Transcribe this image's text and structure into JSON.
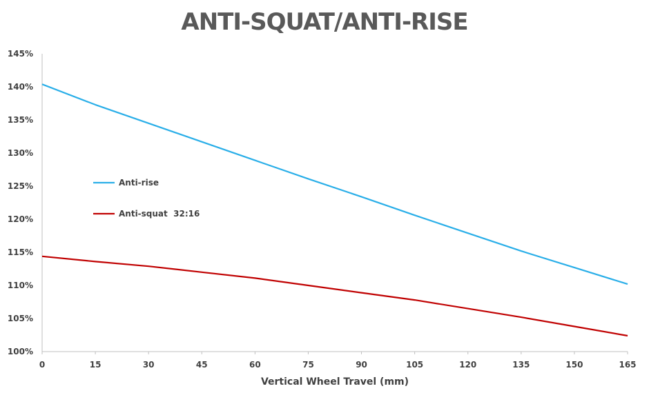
{
  "chart_data": {
    "type": "line",
    "title": "ANTI-SQUAT/ANTI-RISE",
    "xlabel": "Vertical Wheel Travel (mm)",
    "ylabel": "",
    "xlim": [
      0,
      165
    ],
    "ylim": [
      100,
      145
    ],
    "x_ticks": [
      "0",
      "15",
      "30",
      "45",
      "60",
      "75",
      "90",
      "105",
      "120",
      "135",
      "150",
      "165"
    ],
    "y_ticks": [
      "100%",
      "105%",
      "110%",
      "115%",
      "120%",
      "125%",
      "130%",
      "135%",
      "140%",
      "145%"
    ],
    "grid": false,
    "legend_placement": "left-middle",
    "series": [
      {
        "name": "Anti-rise",
        "color": "#29aee8",
        "x": [
          0,
          15,
          30,
          45,
          60,
          75,
          90,
          105,
          120,
          135,
          150,
          165
        ],
        "y": [
          140.4,
          137.3,
          134.5,
          131.7,
          128.9,
          126.1,
          123.4,
          120.6,
          117.9,
          115.2,
          112.7,
          110.2
        ]
      },
      {
        "name": "Anti-squat  32:16",
        "color": "#c00000",
        "x": [
          0,
          15,
          30,
          45,
          60,
          75,
          90,
          105,
          120,
          135,
          150,
          165
        ],
        "y": [
          114.4,
          113.6,
          112.9,
          112.0,
          111.1,
          110.0,
          108.9,
          107.8,
          106.5,
          105.2,
          103.8,
          102.4
        ]
      }
    ]
  }
}
